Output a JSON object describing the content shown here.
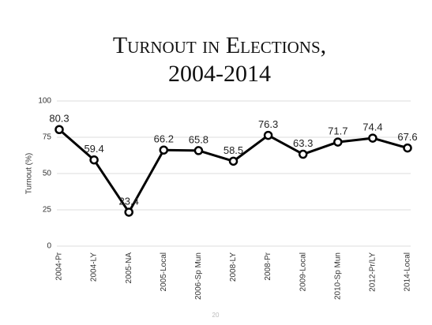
{
  "chart_data": {
    "type": "line",
    "title": "Turnout in Elections, 2004-2014",
    "y_label": "Turnout (%)",
    "categories": [
      "2004-Pr",
      "2004-LY",
      "2005-NA",
      "2005-Local",
      "2006-Sp Mun",
      "2008-LY",
      "2008-Pr",
      "2009-Local",
      "2010-Sp Mun",
      "2012-Pr/LY",
      "2014-Local"
    ],
    "values": [
      80.3,
      59.4,
      23.4,
      66.2,
      65.8,
      58.5,
      76.3,
      63.3,
      71.7,
      74.4,
      67.6
    ],
    "color": "#000000",
    "ylim": [
      0,
      100
    ],
    "yticks": [
      0,
      25,
      50,
      75,
      100
    ],
    "grid": true
  },
  "footer": {
    "page_number": "20"
  }
}
